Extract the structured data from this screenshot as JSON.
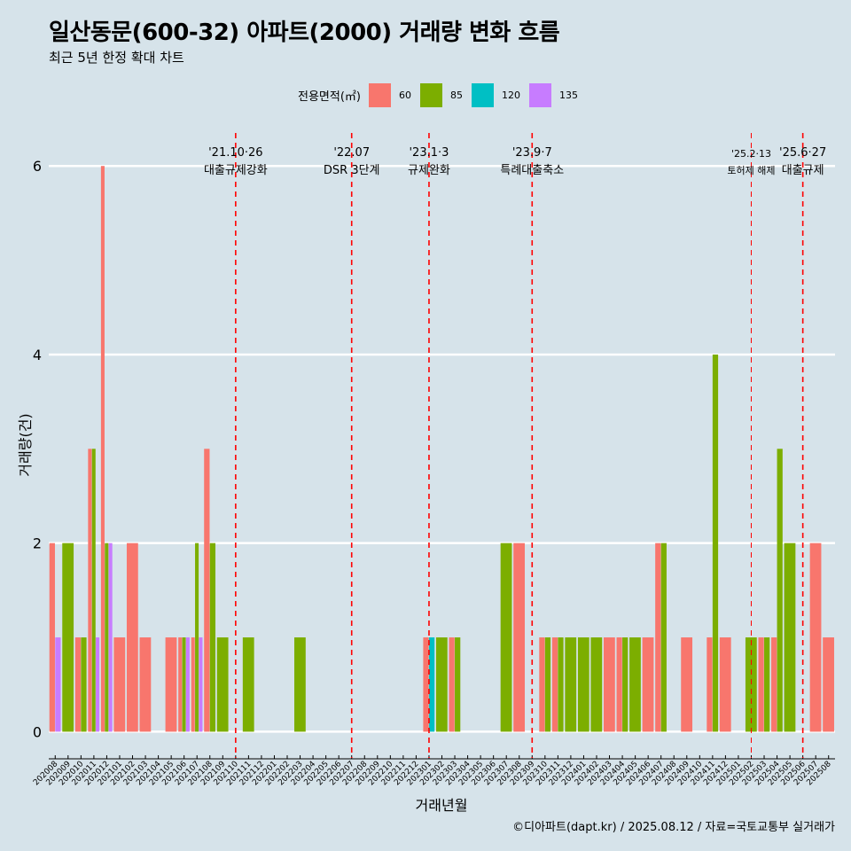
{
  "title": "일산동문(600-32) 아파트(2000) 거래량 변화 흐름",
  "subtitle": "최근 5년 한정 확대 차트",
  "footer": "©디아파트(dapt.kr) / 2025.08.12 / 자료=국토교통부 실거래가",
  "legend": {
    "title": "전용면적(㎡)",
    "items": [
      {
        "label": "60",
        "color": "#F8766D"
      },
      {
        "label": "85",
        "color": "#7CAE00"
      },
      {
        "label": "120",
        "color": "#00BFC4"
      },
      {
        "label": "135",
        "color": "#C77CFF"
      }
    ]
  },
  "chart_data": {
    "type": "bar",
    "stacking": "dodge",
    "xlabel": "거래년월",
    "ylabel": "거래량(건)",
    "ylim": [
      -0.25,
      6.35
    ],
    "yticks": [
      0,
      2,
      4,
      6
    ],
    "grid": "horizontal",
    "legend_position": "top",
    "categories": [
      "202008",
      "202009",
      "202010",
      "202011",
      "202012",
      "202101",
      "202102",
      "202103",
      "202104",
      "202105",
      "202106",
      "202107",
      "202108",
      "202109",
      "202110",
      "202111",
      "202112",
      "202201",
      "202202",
      "202203",
      "202204",
      "202205",
      "202206",
      "202207",
      "202208",
      "202209",
      "202210",
      "202211",
      "202212",
      "202301",
      "202302",
      "202303",
      "202304",
      "202305",
      "202306",
      "202307",
      "202308",
      "202309",
      "202310",
      "202311",
      "202312",
      "202401",
      "202402",
      "202403",
      "202404",
      "202405",
      "202406",
      "202407",
      "202408",
      "202409",
      "202410",
      "202411",
      "202412",
      "202501",
      "202502",
      "202503",
      "202504",
      "202505",
      "202506",
      "202507",
      "202508"
    ],
    "series": [
      {
        "name": "60",
        "color": "#F8766D",
        "values": {
          "202008": 2,
          "202010": 1,
          "202011": 3,
          "202012": 6,
          "202101": 1,
          "202102": 2,
          "202103": 1,
          "202105": 1,
          "202106": 1,
          "202107": 1,
          "202108": 3,
          "202301": 1,
          "202303": 1,
          "202308": 2,
          "202310": 1,
          "202311": 1,
          "202403": 1,
          "202404": 1,
          "202406": 1,
          "202407": 2,
          "202409": 1,
          "202411": 1,
          "202412": 1,
          "202503": 1,
          "202504": 1,
          "202507": 2,
          "202508": 1
        }
      },
      {
        "name": "85",
        "color": "#7CAE00",
        "values": {
          "202009": 2,
          "202010": 1,
          "202011": 3,
          "202012": 2,
          "202106": 1,
          "202107": 2,
          "202108": 2,
          "202109": 1,
          "202111": 1,
          "202203": 1,
          "202302": 1,
          "202303": 1,
          "202307": 2,
          "202310": 1,
          "202311": 1,
          "202312": 1,
          "202401": 1,
          "202402": 1,
          "202404": 1,
          "202405": 1,
          "202407": 2,
          "202411": 4,
          "202502": 1,
          "202503": 1,
          "202504": 3,
          "202505": 2
        }
      },
      {
        "name": "120",
        "color": "#00BFC4",
        "values": {
          "202301": 1
        }
      },
      {
        "name": "135",
        "color": "#C77CFF",
        "values": {
          "202008": 1,
          "202011": 1,
          "202012": 2,
          "202106": 1,
          "202107": 1
        }
      }
    ],
    "events": [
      {
        "x": "202110",
        "date": "'21.10·26",
        "label": "대출규제강화"
      },
      {
        "x": "202207",
        "date": "'22.07",
        "label": "DSR 3단계"
      },
      {
        "x": "202301",
        "date": "'23.1·3",
        "label": "규제완화"
      },
      {
        "x": "202309",
        "date": "'23.9·7",
        "label": "특례대출축소"
      },
      {
        "x": "202502",
        "date": "'25.2·13",
        "label": "토허제 해제"
      },
      {
        "x": "202506",
        "date": "'25.6·27",
        "label": "대출규제"
      }
    ]
  }
}
